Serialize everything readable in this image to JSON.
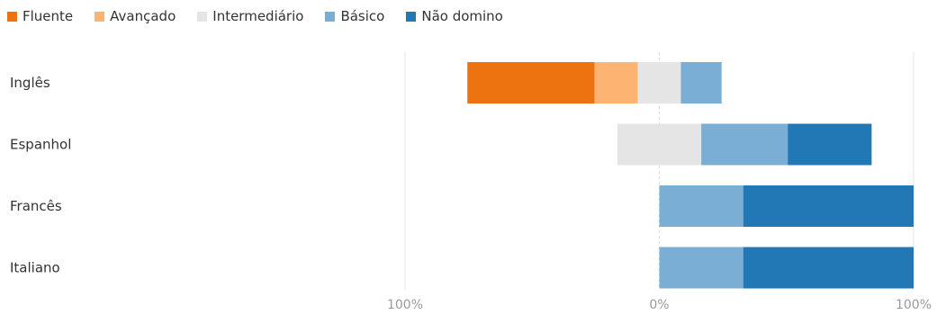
{
  "chart_data": {
    "type": "bar",
    "orientation": "horizontal",
    "stacking": "diverging",
    "categories": [
      "Inglês",
      "Espanhol",
      "Francês",
      "Italiano"
    ],
    "series": [
      {
        "name": "Fluente",
        "color": "#ed7311",
        "values": [
          50,
          0,
          0,
          0
        ]
      },
      {
        "name": "Avançado",
        "color": "#fdb473",
        "values": [
          17,
          0,
          0,
          0
        ]
      },
      {
        "name": "Intermediário",
        "color": "#e5e5e5",
        "values": [
          17,
          33,
          0,
          0
        ]
      },
      {
        "name": "Básico",
        "color": "#7aaed4",
        "values": [
          16,
          34,
          33,
          33
        ]
      },
      {
        "name": "Não domino",
        "color": "#2278b4",
        "values": [
          0,
          33,
          67,
          67
        ]
      }
    ],
    "neutral_series": "Intermediário",
    "x_ticks": [
      "100%",
      "0%",
      "100%"
    ],
    "xlim": [
      -100,
      100
    ],
    "legend_position": "top-left",
    "grid": true
  }
}
